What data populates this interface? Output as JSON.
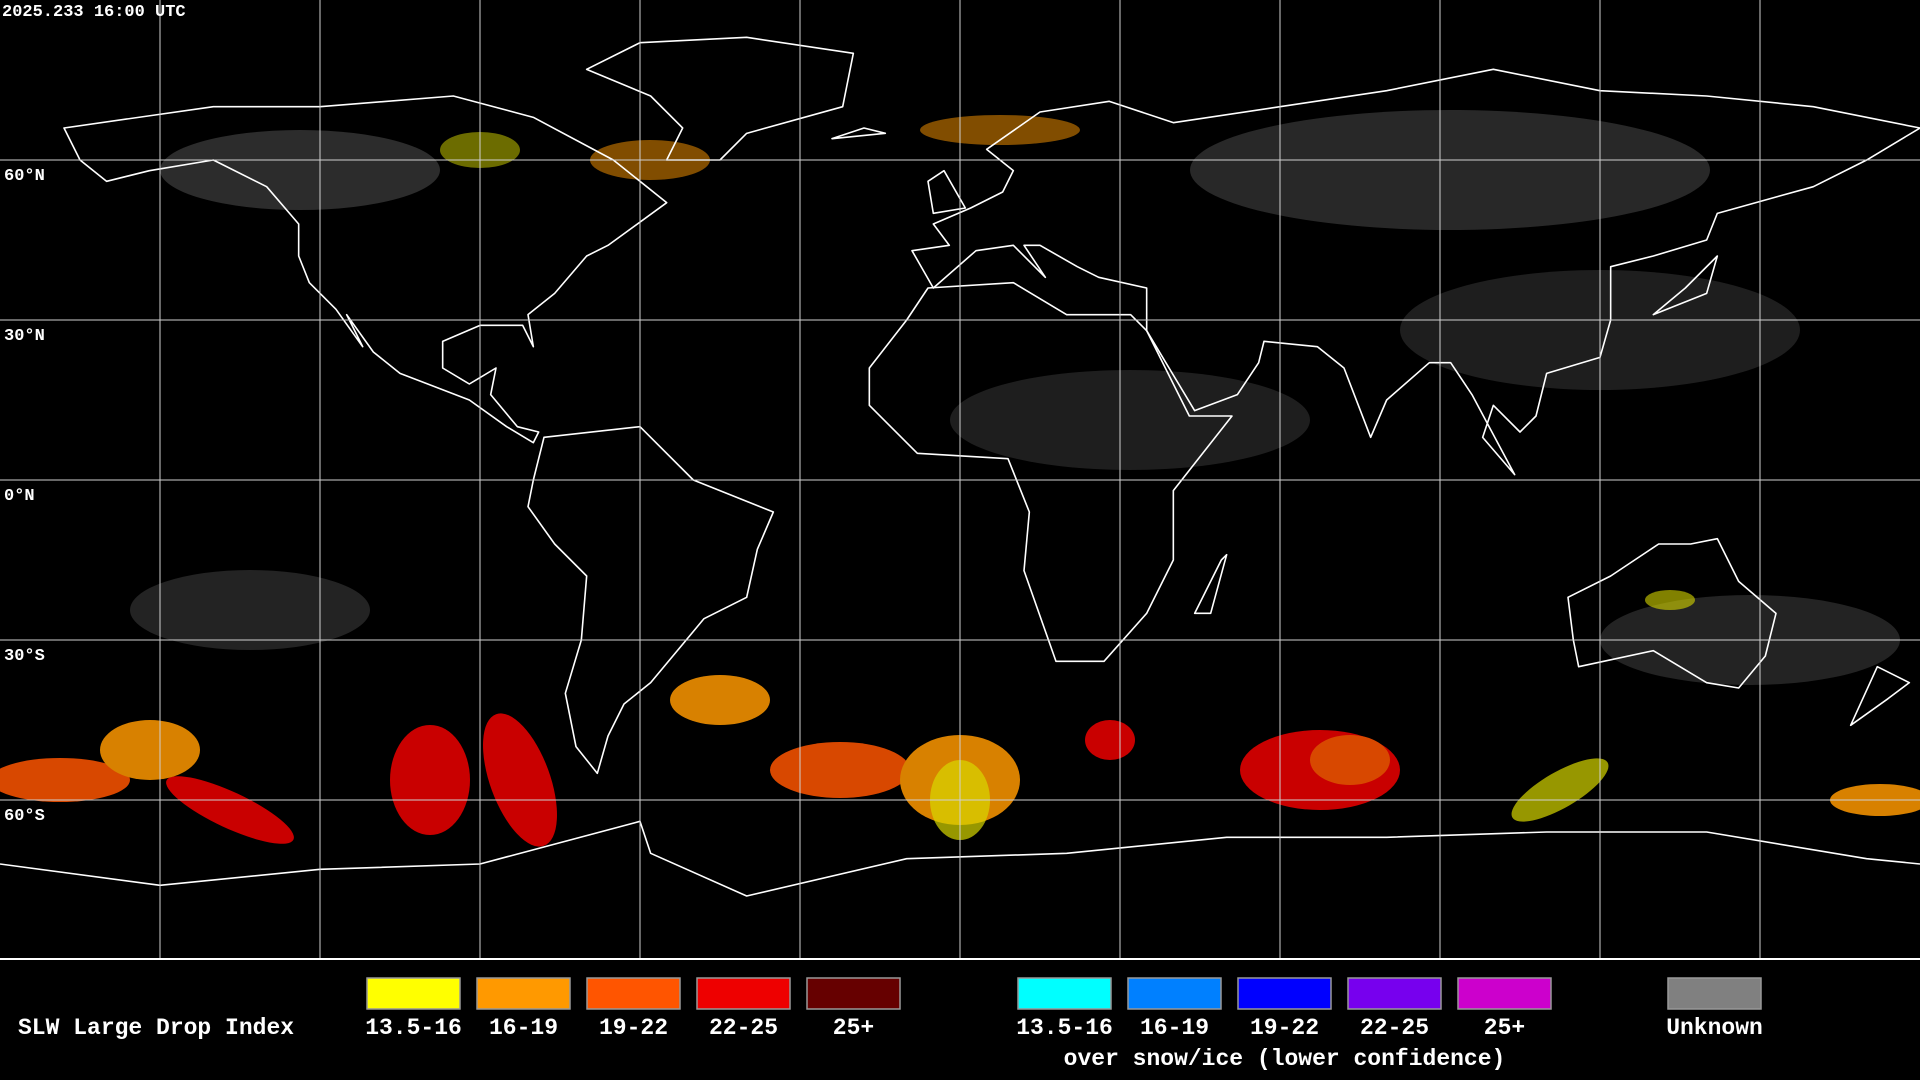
{
  "header": {
    "timestamp": "2025.233 16:00 UTC"
  },
  "map": {
    "lat_labels": [
      "60°N",
      "30°N",
      "0°N",
      "30°S",
      "60°S"
    ]
  },
  "legend": {
    "title": "SLW Large Drop Index",
    "groups": [
      {
        "items": [
          {
            "label": "13.5-16",
            "color": "#ffff00"
          },
          {
            "label": "16-19",
            "color": "#ff9900"
          },
          {
            "label": "19-22",
            "color": "#ff5500"
          },
          {
            "label": "22-25",
            "color": "#ee0000"
          },
          {
            "label": "25+",
            "color": "#660000"
          }
        ]
      },
      {
        "items": [
          {
            "label": "13.5-16",
            "color": "#00ffff"
          },
          {
            "label": "16-19",
            "color": "#0080ff"
          },
          {
            "label": "19-22",
            "color": "#0000ff"
          },
          {
            "label": "22-25",
            "color": "#7700ee"
          },
          {
            "label": "25+",
            "color": "#cc00cc"
          }
        ],
        "caption": "over snow/ice (lower confidence)"
      },
      {
        "items": [
          {
            "label": "Unknown",
            "color": "#808080"
          }
        ]
      }
    ]
  }
}
